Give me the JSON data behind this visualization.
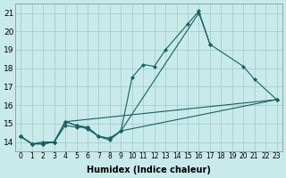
{
  "xlabel": "Humidex (Indice chaleur)",
  "background_color": "#c8eaea",
  "grid_color": "#a0c8c8",
  "line_color": "#1a6060",
  "xlim": [
    -0.5,
    23.5
  ],
  "ylim": [
    13.5,
    21.5
  ],
  "xticks": [
    0,
    1,
    2,
    3,
    4,
    5,
    6,
    7,
    8,
    9,
    10,
    11,
    12,
    13,
    14,
    15,
    16,
    17,
    18,
    19,
    20,
    21,
    22,
    23
  ],
  "yticks": [
    14,
    15,
    16,
    17,
    18,
    19,
    20,
    21
  ],
  "line1_x": [
    0,
    1,
    2,
    3,
    4,
    5,
    6,
    7,
    8,
    9,
    10,
    11,
    12,
    13,
    15,
    16,
    17
  ],
  "line1_y": [
    14.3,
    13.9,
    13.9,
    14.0,
    15.1,
    14.9,
    14.7,
    14.3,
    14.2,
    14.6,
    17.5,
    18.2,
    18.1,
    19.0,
    20.4,
    21.1,
    19.3
  ],
  "line2_x": [
    0,
    1,
    2,
    3,
    4,
    5,
    6,
    7,
    8,
    9,
    16,
    17,
    20,
    21,
    23
  ],
  "line2_y": [
    14.3,
    13.9,
    13.9,
    14.0,
    15.1,
    14.9,
    14.8,
    14.3,
    14.1,
    14.6,
    21.0,
    19.3,
    18.1,
    17.4,
    16.3
  ],
  "line3_x": [
    0,
    1,
    2,
    3,
    4,
    5,
    6,
    7,
    8,
    9,
    23
  ],
  "line3_y": [
    14.3,
    13.9,
    13.9,
    14.0,
    14.9,
    14.8,
    14.8,
    14.3,
    14.2,
    14.6,
    16.3
  ],
  "line4_x": [
    0,
    1,
    2,
    3,
    4,
    23
  ],
  "line4_y": [
    14.3,
    13.9,
    14.0,
    14.0,
    15.1,
    16.3
  ]
}
